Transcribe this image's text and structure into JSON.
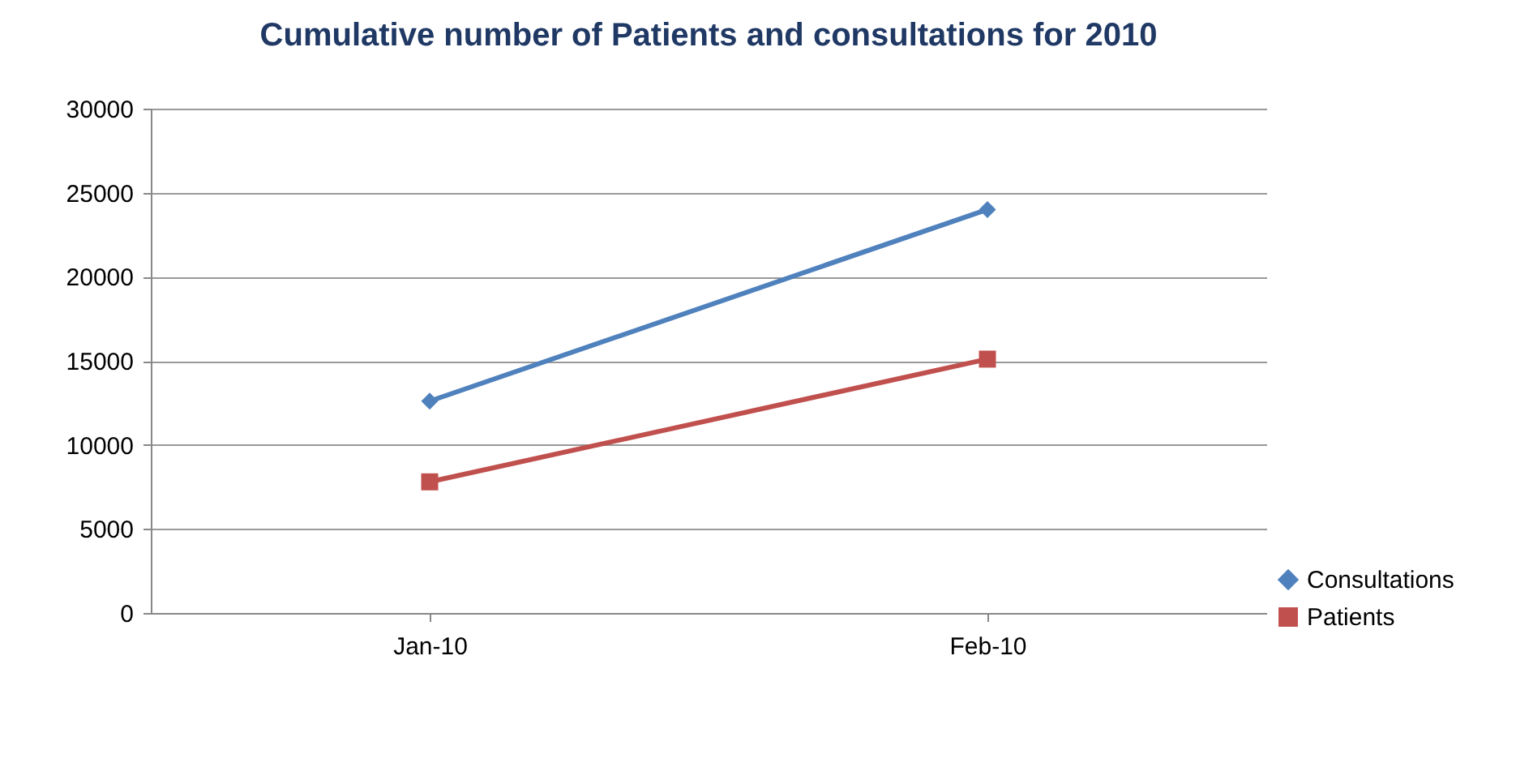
{
  "chart_data": {
    "type": "line",
    "title": "Cumulative number of Patients and consultations for 2010",
    "categories": [
      "Jan-10",
      "Feb-10"
    ],
    "series": [
      {
        "name": "Consultations",
        "color": "#4f81bd",
        "values": [
          12600,
          24000
        ],
        "marker": "diamond"
      },
      {
        "name": "Patients",
        "color": "#c0504d",
        "values": [
          7800,
          15100
        ],
        "marker": "square"
      }
    ],
    "ylim": [
      0,
      30000
    ],
    "yticks": [
      0,
      5000,
      10000,
      15000,
      20000,
      25000,
      30000
    ],
    "grid": "y",
    "legend": "bottom right",
    "line_style": "solid"
  }
}
